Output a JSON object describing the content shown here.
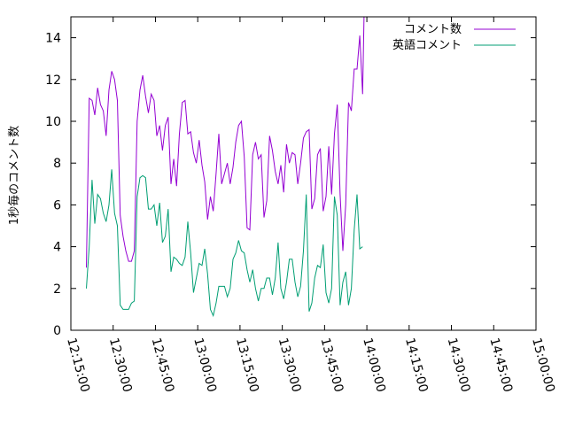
{
  "chart_data": {
    "type": "line",
    "ylabel": "1秒毎のコメント数",
    "xlabel": "",
    "ylim": [
      0,
      15
    ],
    "xlim": [
      "12:15:00",
      "15:00:00"
    ],
    "legend_position": "top-right",
    "y_ticks": [
      0,
      2,
      4,
      6,
      8,
      10,
      12,
      14
    ],
    "x_ticks": [
      "12:15:00",
      "12:30:00",
      "12:45:00",
      "13:00:00",
      "13:15:00",
      "13:30:00",
      "13:45:00",
      "14:00:00",
      "14:15:00",
      "14:30:00",
      "14:45:00",
      "15:00:00"
    ],
    "x_minutes_start": "12:15:00",
    "series": [
      {
        "name": "コメント数",
        "color": "#9400d3",
        "points": [
          [
            5.5,
            3.0
          ],
          [
            6.5,
            11.1
          ],
          [
            7.5,
            11.0
          ],
          [
            8.5,
            10.3
          ],
          [
            9.5,
            11.6
          ],
          [
            10.5,
            10.8
          ],
          [
            11.5,
            10.5
          ],
          [
            12.5,
            9.3
          ],
          [
            13.5,
            11.5
          ],
          [
            14.5,
            12.4
          ],
          [
            15.5,
            12.0
          ],
          [
            16.5,
            11.0
          ],
          [
            17.5,
            5.5
          ],
          [
            18.5,
            4.5
          ],
          [
            19.5,
            3.8
          ],
          [
            20.5,
            3.3
          ],
          [
            21.5,
            3.3
          ],
          [
            22.5,
            3.8
          ],
          [
            23.5,
            10.0
          ],
          [
            24.5,
            11.5
          ],
          [
            25.5,
            12.2
          ],
          [
            26.5,
            11.2
          ],
          [
            27.5,
            10.4
          ],
          [
            28.5,
            11.3
          ],
          [
            29.5,
            11.0
          ],
          [
            30.5,
            9.3
          ],
          [
            31.5,
            9.8
          ],
          [
            32.5,
            8.6
          ],
          [
            33.5,
            9.8
          ],
          [
            34.5,
            10.2
          ],
          [
            35.5,
            7.0
          ],
          [
            36.5,
            8.2
          ],
          [
            37.5,
            6.9
          ],
          [
            38.5,
            9.4
          ],
          [
            39.5,
            10.9
          ],
          [
            40.5,
            11.0
          ],
          [
            41.5,
            9.4
          ],
          [
            42.5,
            9.5
          ],
          [
            43.5,
            8.5
          ],
          [
            44.5,
            8.0
          ],
          [
            45.5,
            9.1
          ],
          [
            46.5,
            7.9
          ],
          [
            47.5,
            7.1
          ],
          [
            48.5,
            5.3
          ],
          [
            49.5,
            6.4
          ],
          [
            50.5,
            5.7
          ],
          [
            51.5,
            7.5
          ],
          [
            52.5,
            9.4
          ],
          [
            53.5,
            7.0
          ],
          [
            54.5,
            7.5
          ],
          [
            55.5,
            8.0
          ],
          [
            56.5,
            7.0
          ],
          [
            57.5,
            7.8
          ],
          [
            58.5,
            9.0
          ],
          [
            59.5,
            9.8
          ],
          [
            60.5,
            10.0
          ],
          [
            61.5,
            8.3
          ],
          [
            62.5,
            4.9
          ],
          [
            63.5,
            4.8
          ],
          [
            64.5,
            8.4
          ],
          [
            65.5,
            9.0
          ],
          [
            66.5,
            8.2
          ],
          [
            67.5,
            8.4
          ],
          [
            68.5,
            5.4
          ],
          [
            69.5,
            6.2
          ],
          [
            70.5,
            9.3
          ],
          [
            71.5,
            8.6
          ],
          [
            72.5,
            7.6
          ],
          [
            73.5,
            7.0
          ],
          [
            74.5,
            7.9
          ],
          [
            75.5,
            6.6
          ],
          [
            76.5,
            8.9
          ],
          [
            77.5,
            8.0
          ],
          [
            78.5,
            8.5
          ],
          [
            79.5,
            8.4
          ],
          [
            80.5,
            7.0
          ],
          [
            81.5,
            8.0
          ],
          [
            82.5,
            9.2
          ],
          [
            83.5,
            9.5
          ],
          [
            84.5,
            9.6
          ],
          [
            85.5,
            5.8
          ],
          [
            86.5,
            6.3
          ],
          [
            87.5,
            8.4
          ],
          [
            88.5,
            8.7
          ],
          [
            89.5,
            5.7
          ],
          [
            90.5,
            6.4
          ],
          [
            91.5,
            8.8
          ],
          [
            92.5,
            6.5
          ],
          [
            93.5,
            9.4
          ],
          [
            94.5,
            10.8
          ],
          [
            95.5,
            6.5
          ],
          [
            96.5,
            3.8
          ],
          [
            97.5,
            6.0
          ],
          [
            98.5,
            10.9
          ],
          [
            99.5,
            10.5
          ],
          [
            100.5,
            12.5
          ],
          [
            101.5,
            12.5
          ],
          [
            102.5,
            14.1
          ],
          [
            103.5,
            11.3
          ],
          [
            104.0,
            15.0
          ]
        ]
      },
      {
        "name": "英語コメント",
        "color": "#009e73",
        "points": [
          [
            5.5,
            2.0
          ],
          [
            6.5,
            4.0
          ],
          [
            7.5,
            7.2
          ],
          [
            8.5,
            5.1
          ],
          [
            9.5,
            6.5
          ],
          [
            10.5,
            6.3
          ],
          [
            11.5,
            5.6
          ],
          [
            12.5,
            5.2
          ],
          [
            13.5,
            6.0
          ],
          [
            14.5,
            7.7
          ],
          [
            15.5,
            5.6
          ],
          [
            16.5,
            5.0
          ],
          [
            17.5,
            1.2
          ],
          [
            18.5,
            1.0
          ],
          [
            19.5,
            1.0
          ],
          [
            20.5,
            1.0
          ],
          [
            21.5,
            1.3
          ],
          [
            22.5,
            1.4
          ],
          [
            23.5,
            6.4
          ],
          [
            24.5,
            7.3
          ],
          [
            25.5,
            7.4
          ],
          [
            26.5,
            7.3
          ],
          [
            27.5,
            5.8
          ],
          [
            28.5,
            5.8
          ],
          [
            29.5,
            6.0
          ],
          [
            30.5,
            5.0
          ],
          [
            31.5,
            6.1
          ],
          [
            32.5,
            4.2
          ],
          [
            33.5,
            4.5
          ],
          [
            34.5,
            5.8
          ],
          [
            35.5,
            2.8
          ],
          [
            36.5,
            3.5
          ],
          [
            37.5,
            3.4
          ],
          [
            38.5,
            3.2
          ],
          [
            39.5,
            3.1
          ],
          [
            40.5,
            3.5
          ],
          [
            41.5,
            5.2
          ],
          [
            42.5,
            3.7
          ],
          [
            43.5,
            1.8
          ],
          [
            44.5,
            2.5
          ],
          [
            45.5,
            3.2
          ],
          [
            46.5,
            3.1
          ],
          [
            47.5,
            3.9
          ],
          [
            48.5,
            2.7
          ],
          [
            49.5,
            1.0
          ],
          [
            50.5,
            0.7
          ],
          [
            51.5,
            1.3
          ],
          [
            52.5,
            2.1
          ],
          [
            53.5,
            2.1
          ],
          [
            54.5,
            2.1
          ],
          [
            55.5,
            1.6
          ],
          [
            56.5,
            2.0
          ],
          [
            57.5,
            3.4
          ],
          [
            58.5,
            3.7
          ],
          [
            59.5,
            4.3
          ],
          [
            60.5,
            3.8
          ],
          [
            61.5,
            3.7
          ],
          [
            62.5,
            2.9
          ],
          [
            63.5,
            2.3
          ],
          [
            64.5,
            2.9
          ],
          [
            65.5,
            2.0
          ],
          [
            66.5,
            1.4
          ],
          [
            67.5,
            2.0
          ],
          [
            68.5,
            2.0
          ],
          [
            69.5,
            2.5
          ],
          [
            70.5,
            2.5
          ],
          [
            71.5,
            1.7
          ],
          [
            72.5,
            2.5
          ],
          [
            73.5,
            4.2
          ],
          [
            74.5,
            2.0
          ],
          [
            75.5,
            1.5
          ],
          [
            76.5,
            2.3
          ],
          [
            77.5,
            3.4
          ],
          [
            78.5,
            3.4
          ],
          [
            79.5,
            2.3
          ],
          [
            80.5,
            1.6
          ],
          [
            81.5,
            2.1
          ],
          [
            82.5,
            3.8
          ],
          [
            83.5,
            6.5
          ],
          [
            84.5,
            0.9
          ],
          [
            85.5,
            1.3
          ],
          [
            86.5,
            2.5
          ],
          [
            87.5,
            3.1
          ],
          [
            88.5,
            3.0
          ],
          [
            89.5,
            4.1
          ],
          [
            90.5,
            1.8
          ],
          [
            91.5,
            1.3
          ],
          [
            92.5,
            2.0
          ],
          [
            93.5,
            6.4
          ],
          [
            94.5,
            5.5
          ],
          [
            95.5,
            1.2
          ],
          [
            96.5,
            2.3
          ],
          [
            97.5,
            2.8
          ],
          [
            98.5,
            1.2
          ],
          [
            99.5,
            2.0
          ],
          [
            100.5,
            4.8
          ],
          [
            101.5,
            6.5
          ],
          [
            102.5,
            3.9
          ],
          [
            103.5,
            4.0
          ]
        ]
      }
    ]
  }
}
